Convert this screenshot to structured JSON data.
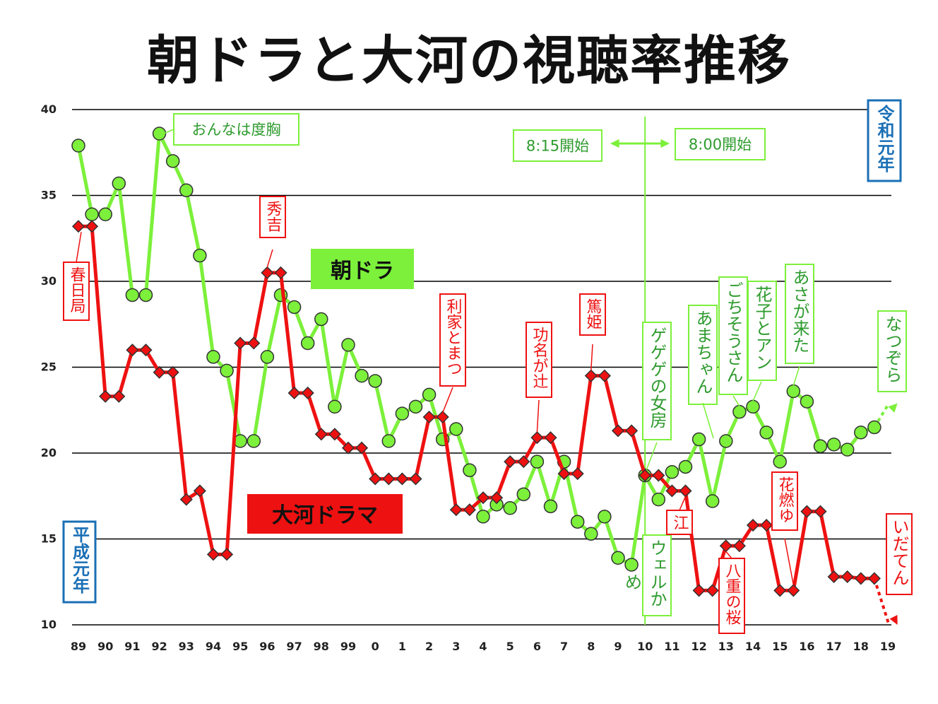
{
  "title": "朝ドラと大河の視聴率推移",
  "colors": {
    "asadora": "#7cf03a",
    "asadora_text": "#2e9b2e",
    "taiga": "#ee1111",
    "era": "#1a6fb5",
    "grid": "#000000"
  },
  "chart_data": {
    "type": "line",
    "title": "朝ドラと大河の視聴率推移",
    "ylim": [
      10,
      40
    ],
    "yticks": [
      "10",
      "15",
      "20",
      "25",
      "30",
      "35",
      "40"
    ],
    "xticks": [
      "89",
      "90",
      "91",
      "92",
      "93",
      "94",
      "95",
      "96",
      "97",
      "98",
      "99",
      "0",
      "1",
      "2",
      "3",
      "4",
      "5",
      "6",
      "7",
      "8",
      "9",
      "10",
      "11",
      "12",
      "13",
      "14",
      "15",
      "16",
      "17",
      "18",
      "19"
    ],
    "xlim": [
      1989,
      2019
    ],
    "grid": true,
    "series": [
      {
        "name": "朝ドラ",
        "color": "#7cf03a",
        "marker": "circle",
        "x": [
          1989,
          1989.5,
          1990,
          1990.5,
          1991,
          1991.5,
          1992,
          1992.5,
          1993,
          1993.5,
          1994,
          1994.5,
          1995,
          1995.5,
          1996,
          1996.5,
          1997,
          1997.5,
          1998,
          1998.5,
          1999,
          1999.5,
          2000,
          2000.5,
          2001,
          2001.5,
          2002,
          2002.5,
          2003,
          2003.5,
          2004,
          2004.5,
          2005,
          2005.5,
          2006,
          2006.5,
          2007,
          2007.5,
          2008,
          2008.5,
          2009,
          2009.5,
          2010,
          2010.5,
          2011,
          2011.5,
          2012,
          2012.5,
          2013,
          2013.5,
          2014,
          2014.5,
          2015,
          2015.5,
          2016,
          2016.5,
          2017,
          2017.5,
          2018,
          2018.5
        ],
        "y": [
          37.9,
          33.9,
          33.9,
          35.7,
          29.2,
          29.2,
          38.6,
          37.0,
          35.3,
          31.5,
          25.6,
          24.8,
          20.7,
          20.7,
          25.6,
          29.2,
          28.5,
          26.4,
          27.8,
          22.7,
          26.3,
          24.5,
          24.2,
          20.7,
          22.3,
          22.7,
          23.4,
          20.8,
          21.4,
          19.0,
          16.3,
          17.0,
          16.8,
          17.6,
          19.5,
          16.9,
          19.5,
          16.0,
          15.3,
          16.3,
          13.9,
          13.5,
          18.7,
          17.3,
          18.9,
          19.2,
          20.8,
          17.2,
          20.7,
          22.4,
          22.7,
          21.2,
          19.5,
          23.6,
          23.0,
          20.4,
          20.5,
          20.2,
          21.2,
          21.5
        ],
        "arrow_to": [
          2019.2,
          22.9
        ]
      },
      {
        "name": "大河ドラマ",
        "color": "#ee1111",
        "marker": "diamond",
        "x": [
          1989,
          1989.5,
          1990,
          1990.5,
          1991,
          1991.5,
          1992,
          1992.5,
          1993,
          1993.5,
          1994,
          1994.5,
          1995,
          1995.5,
          1996,
          1996.5,
          1997,
          1997.5,
          1998,
          1998.5,
          1999,
          1999.5,
          2000,
          2000.5,
          2001,
          2001.5,
          2002,
          2002.5,
          2003,
          2003.5,
          2004,
          2004.5,
          2005,
          2005.5,
          2006,
          2006.5,
          2007,
          2007.5,
          2008,
          2008.5,
          2009,
          2009.5,
          2010,
          2010.5,
          2011,
          2011.5,
          2012,
          2012.5,
          2013,
          2013.5,
          2014,
          2014.5,
          2015,
          2015.5,
          2016,
          2016.5,
          2017,
          2017.5,
          2018,
          2018.5
        ],
        "y": [
          33.2,
          33.2,
          23.3,
          23.3,
          26.0,
          26.0,
          24.7,
          24.7,
          17.3,
          17.8,
          14.1,
          14.1,
          26.4,
          26.4,
          30.5,
          30.5,
          23.5,
          23.5,
          21.1,
          21.1,
          20.3,
          20.3,
          18.5,
          18.5,
          18.5,
          18.5,
          22.1,
          22.1,
          16.7,
          16.7,
          17.4,
          17.4,
          19.5,
          19.5,
          20.9,
          20.9,
          18.8,
          18.8,
          24.5,
          24.5,
          21.3,
          21.3,
          18.7,
          18.7,
          17.8,
          17.8,
          12.0,
          12.0,
          14.6,
          14.6,
          15.8,
          15.8,
          12.0,
          12.0,
          16.6,
          16.6,
          12.8,
          12.8,
          12.7,
          12.7
        ],
        "arrow_to": [
          2019.2,
          10.0
        ]
      }
    ],
    "annotations": {
      "asadora": [
        "おんなは度胸",
        "ゲゲゲの女房",
        "ウェルかめ",
        "あまちゃん",
        "ごちそうさん",
        "花子とアン",
        "あさが来た",
        "なつぞら"
      ],
      "taiga": [
        "春日局",
        "秀吉",
        "利家とまつ",
        "功名が辻",
        "篤姫",
        "江",
        "八重の桜",
        "花燃ゆ",
        "いだてん"
      ]
    },
    "series_labels": [
      "朝ドラ",
      "大河ドラマ"
    ],
    "broadcast_change": {
      "before": "8:15開始",
      "after": "8:00開始",
      "year": 2010
    },
    "era_labels": {
      "heisei": "平成元年",
      "reiwa": "令和元年"
    }
  }
}
